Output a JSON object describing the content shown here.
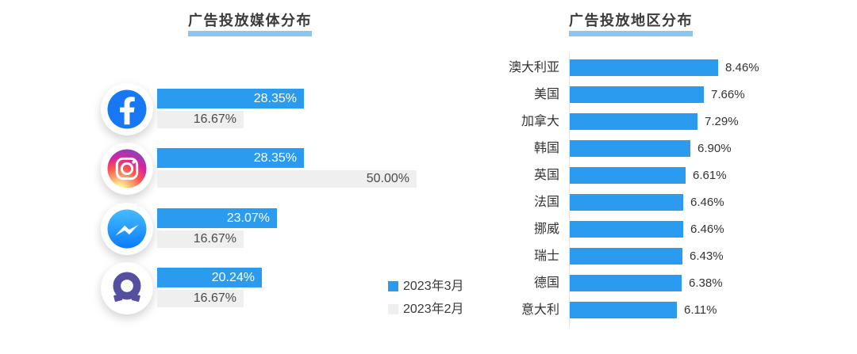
{
  "chart_data": [
    {
      "id": "media",
      "type": "bar",
      "orientation": "horizontal",
      "title": "广告投放媒体分布",
      "categories": [
        "Facebook",
        "Instagram",
        "Messenger",
        "Audience Network"
      ],
      "icons": [
        "facebook-icon",
        "instagram-icon",
        "messenger-icon",
        "audience-network-icon"
      ],
      "series": [
        {
          "name": "2023年3月",
          "color": "#2b9bf0",
          "values": [
            28.35,
            28.35,
            23.07,
            20.24
          ]
        },
        {
          "name": "2023年2月",
          "color": "#efefef",
          "values": [
            16.67,
            50.0,
            16.67,
            16.67
          ]
        }
      ],
      "value_suffix": "%",
      "legend_position": "bottom-right",
      "grid": false
    },
    {
      "id": "region",
      "type": "bar",
      "orientation": "horizontal",
      "title": "广告投放地区分布",
      "categories": [
        "澳大利亚",
        "美国",
        "加拿大",
        "韩国",
        "英国",
        "法国",
        "挪威",
        "瑞士",
        "德国",
        "意大利"
      ],
      "values": [
        8.46,
        7.66,
        7.29,
        6.9,
        6.61,
        6.46,
        6.46,
        6.43,
        6.38,
        6.11
      ],
      "bar_color": "#2b9bf0",
      "value_suffix": "%",
      "grid": false
    }
  ],
  "colors": {
    "bar_blue": "#2b9bf0",
    "bar_gray": "#efefef",
    "title_underline": "#8ac6ef",
    "facebook_blue": "#1877f2",
    "messenger_gradient_top": "#45bcff",
    "messenger_gradient_bottom": "#0a7cff",
    "audience_network_purple": "#564e9f",
    "axis_line": "#e4e4e4"
  }
}
